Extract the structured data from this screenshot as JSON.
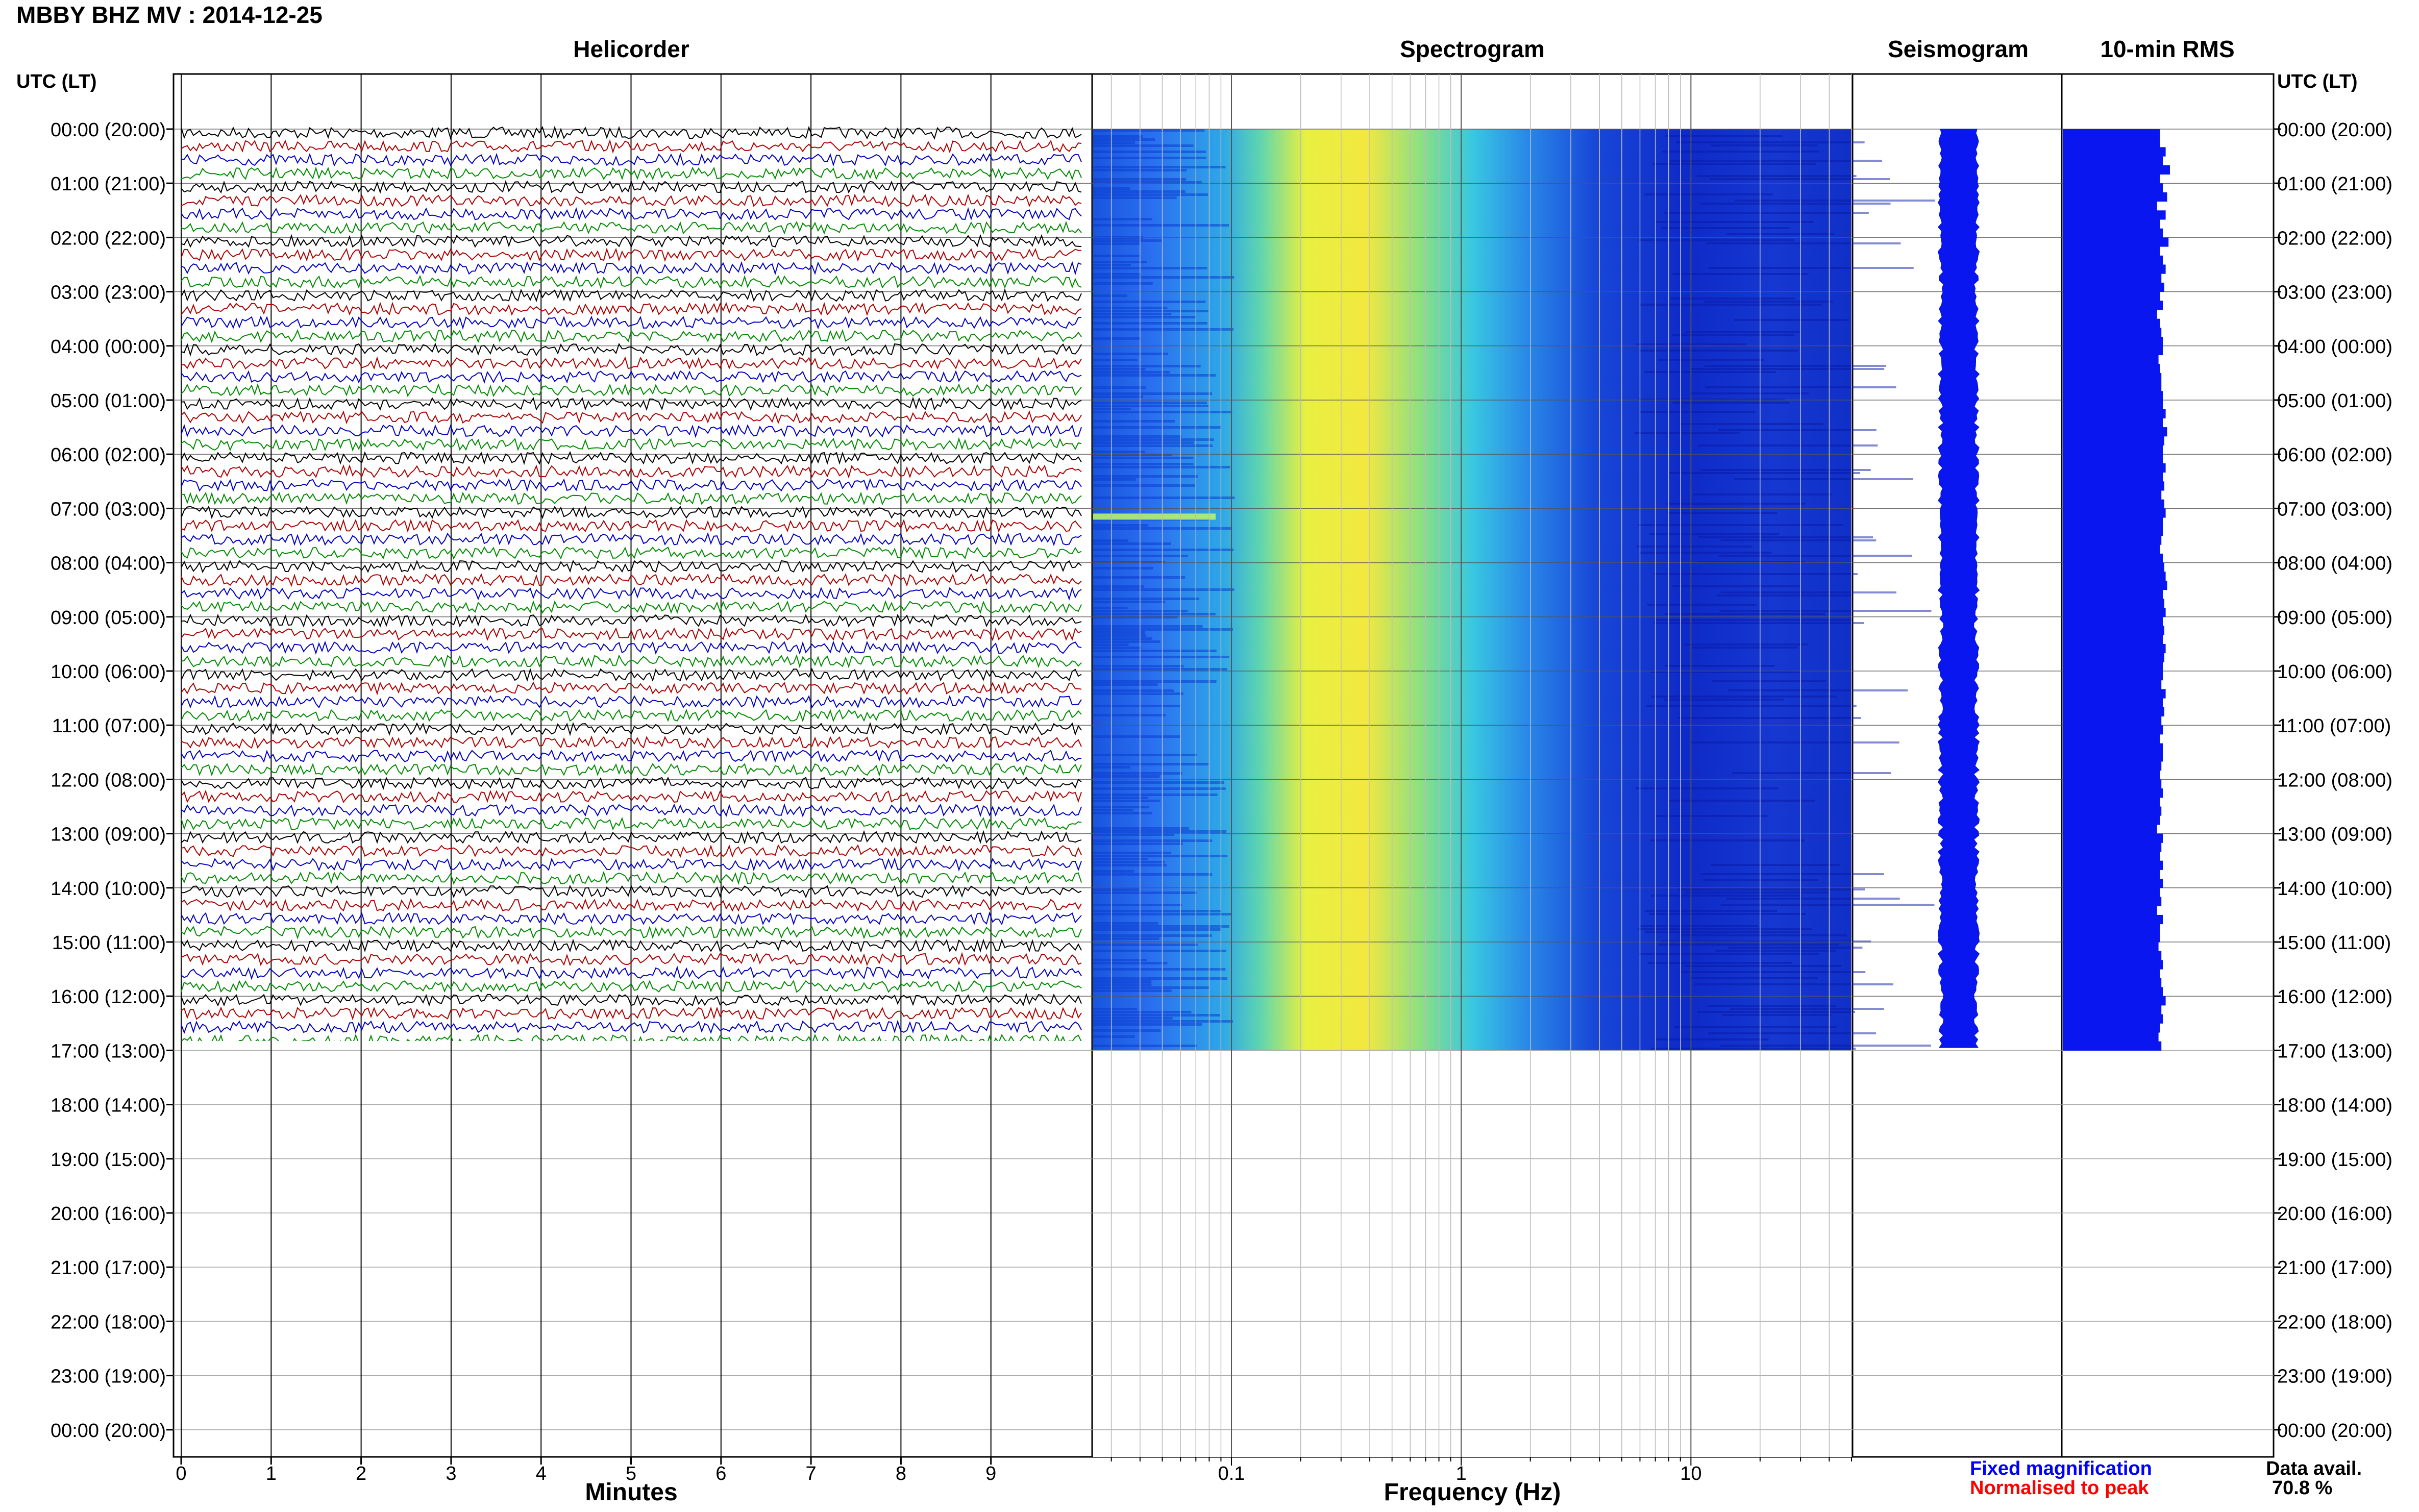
{
  "header": {
    "title": "MBBY BHZ MV : 2014-12-25",
    "utc_label_left": "UTC (LT)",
    "utc_label_right": "UTC (LT)"
  },
  "panels": {
    "helicorder": "Helicorder",
    "spectrogram": "Spectrogram",
    "seismogram": "Seismogram",
    "rms": "10-min RMS"
  },
  "axes": {
    "minutes_label": "Minutes",
    "frequency_label": "Frequency (Hz)"
  },
  "legend": {
    "fixed": "Fixed magnification",
    "normalised": "Normalised to peak",
    "fixed_color": "#0000ff",
    "normalised_color": "#ff0000"
  },
  "data_avail": {
    "label": "Data avail.",
    "value": "70.8 %"
  },
  "chart_data": {
    "type": "heatmap",
    "station": "MBBY BHZ MV",
    "date": "2014-12-25",
    "time_labels": [
      "00:00 (20:00)",
      "01:00 (21:00)",
      "02:00 (22:00)",
      "03:00 (23:00)",
      "04:00 (00:00)",
      "05:00 (01:00)",
      "06:00 (02:00)",
      "07:00 (03:00)",
      "08:00 (04:00)",
      "09:00 (05:00)",
      "10:00 (06:00)",
      "11:00 (07:00)",
      "12:00 (08:00)",
      "13:00 (09:00)",
      "14:00 (10:00)",
      "15:00 (11:00)",
      "16:00 (12:00)",
      "17:00 (13:00)",
      "18:00 (14:00)",
      "19:00 (15:00)",
      "20:00 (16:00)",
      "21:00 (17:00)",
      "22:00 (18:00)",
      "23:00 (19:00)",
      "00:00 (20:00)"
    ],
    "helicorder": {
      "x_ticks": [
        "0",
        "1",
        "2",
        "3",
        "4",
        "5",
        "6",
        "7",
        "8",
        "9"
      ],
      "xlim": [
        0,
        10
      ],
      "trace_colors": [
        "#000000",
        "#b00000",
        "#0000c8",
        "#008c00"
      ],
      "hours_with_data": 17
    },
    "spectrogram": {
      "x_ticks": [
        "0.1",
        "1",
        "10"
      ],
      "xlim": [
        0.025,
        50
      ],
      "xscale": "log",
      "peak_frequency_hz": 0.3
    },
    "rms": {
      "unit_bins_per_hour": 6,
      "relative_values": [
        0.68,
        0.68,
        0.72,
        0.7,
        0.75,
        0.68,
        0.7,
        0.73,
        0.66,
        0.72,
        0.68,
        0.7,
        0.74,
        0.68,
        0.7,
        0.72,
        0.69,
        0.71,
        0.68,
        0.7,
        0.66,
        0.68,
        0.69,
        0.7,
        0.7,
        0.67,
        0.68,
        0.69,
        0.69,
        0.7,
        0.7,
        0.72,
        0.7,
        0.73,
        0.71,
        0.7,
        0.7,
        0.72,
        0.7,
        0.71,
        0.69,
        0.71,
        0.72,
        0.7,
        0.7,
        0.69,
        0.68,
        0.7,
        0.71,
        0.72,
        0.73,
        0.7,
        0.71,
        0.72,
        0.7,
        0.71,
        0.7,
        0.72,
        0.71,
        0.7,
        0.7,
        0.69,
        0.72,
        0.7,
        0.71,
        0.69,
        0.7,
        0.68,
        0.7,
        0.7,
        0.69,
        0.68,
        0.69,
        0.7,
        0.68,
        0.69,
        0.68,
        0.66,
        0.7,
        0.69,
        0.68,
        0.7,
        0.68,
        0.7,
        0.68,
        0.69,
        0.66,
        0.7,
        0.68,
        0.68,
        0.67,
        0.69,
        0.7,
        0.68,
        0.69,
        0.7,
        0.72,
        0.69,
        0.7,
        0.68,
        0.67,
        0.69
      ]
    },
    "seismogram": {
      "relative_width": 0.2
    }
  }
}
